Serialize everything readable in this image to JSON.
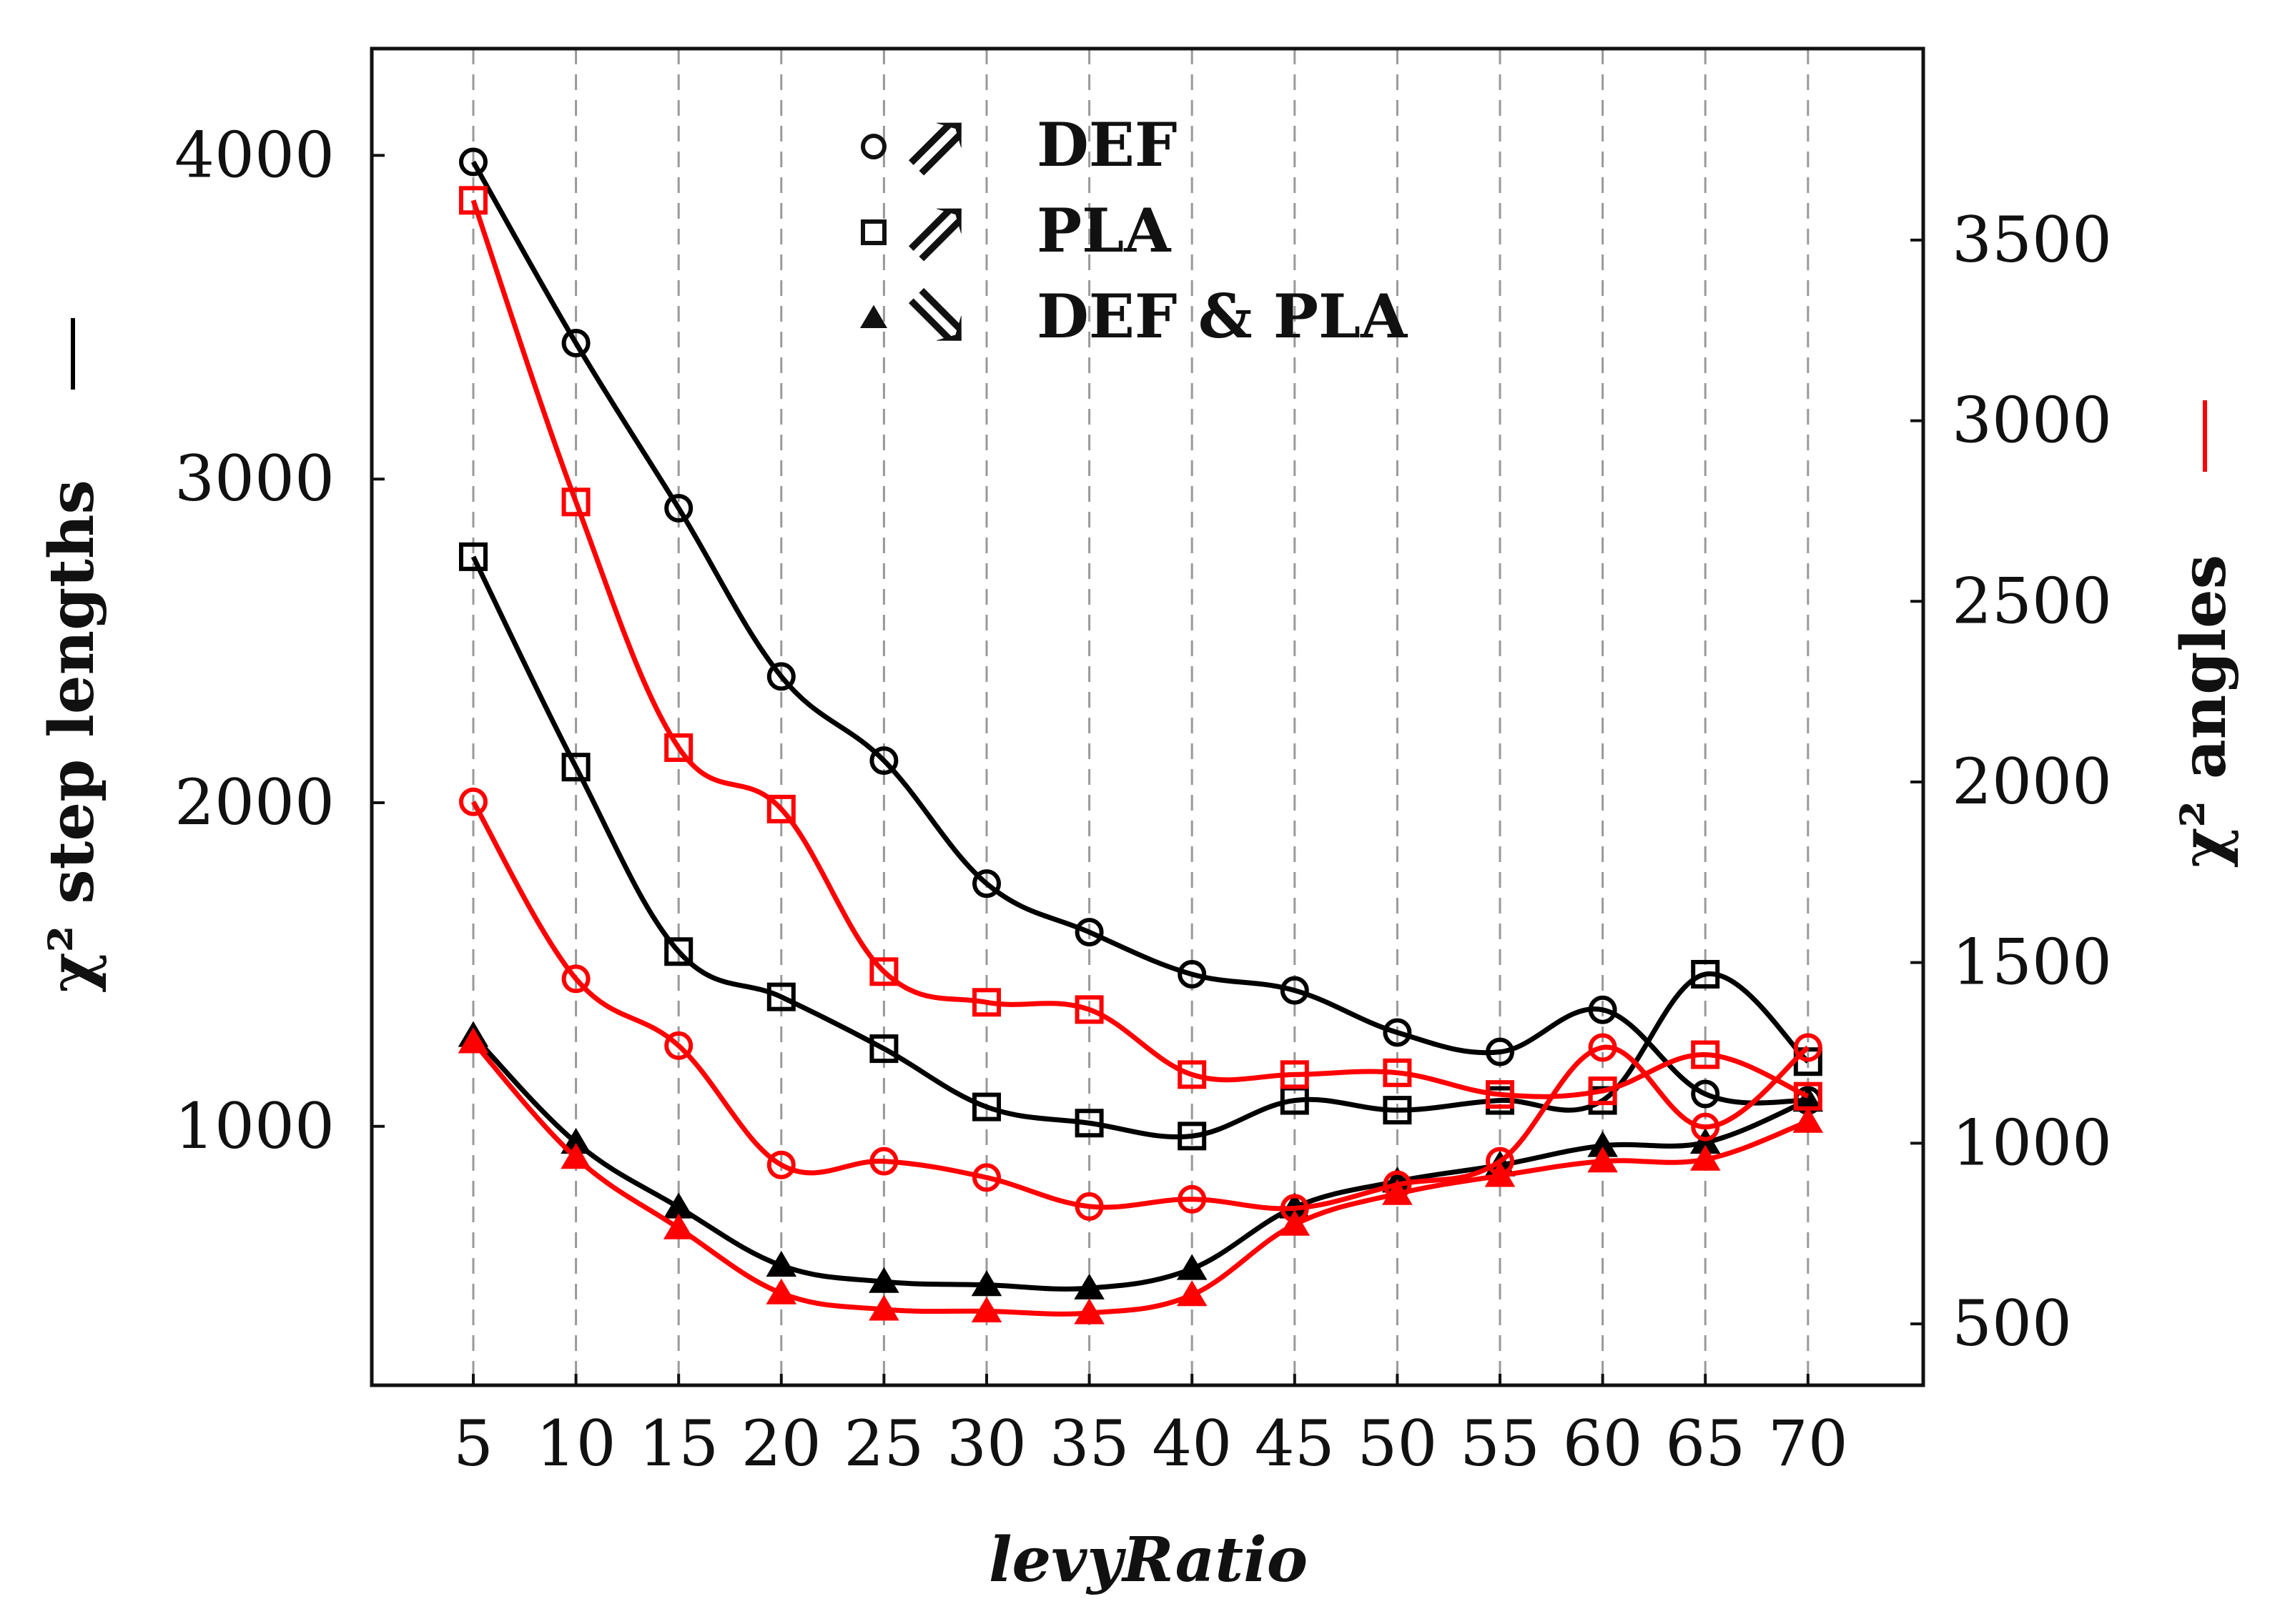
{
  "chart_data": {
    "type": "line",
    "xlabel": "levyRatio",
    "ylabel_left": "χ² step lengths",
    "ylabel_right": "χ² angles",
    "x": [
      5,
      10,
      15,
      20,
      25,
      30,
      35,
      40,
      45,
      50,
      55,
      60,
      65,
      70
    ],
    "ylim_left": [
      200,
      4330
    ],
    "ylim_right": [
      330,
      4030
    ],
    "yticks_left": [
      1000,
      2000,
      3000,
      4000
    ],
    "yticks_right": [
      500,
      1000,
      1500,
      2000,
      2500,
      3000,
      3500
    ],
    "grid": "vertical-dashed",
    "legend_position": "top-center",
    "legend": [
      {
        "marker": "circle",
        "label": "DEF"
      },
      {
        "marker": "square",
        "label": "PLA"
      },
      {
        "marker": "triangle",
        "label": "DEF & PLA"
      }
    ],
    "series": [
      {
        "name": "DEF step lengths",
        "axis": "left",
        "color": "#000000",
        "marker": "circle",
        "values": [
          3980,
          3420,
          2910,
          2390,
          2130,
          1750,
          1600,
          1470,
          1420,
          1290,
          1230,
          1360,
          1100,
          1080
        ]
      },
      {
        "name": "PLA step lengths",
        "axis": "left",
        "color": "#000000",
        "marker": "square",
        "values": [
          2760,
          2110,
          1540,
          1400,
          1240,
          1060,
          1010,
          970,
          1080,
          1050,
          1080,
          1080,
          1470,
          1200
        ]
      },
      {
        "name": "DEF & PLA step lengths",
        "axis": "left",
        "color": "#000000",
        "marker": "triangle",
        "values": [
          1280,
          950,
          750,
          570,
          520,
          510,
          500,
          560,
          750,
          830,
          880,
          940,
          950,
          1080
        ]
      },
      {
        "name": "DEF angles",
        "axis": "right",
        "color": "#ff0000",
        "marker": "circle",
        "values": [
          1945,
          1455,
          1270,
          940,
          950,
          905,
          825,
          845,
          820,
          885,
          950,
          1265,
          1045,
          1265
        ]
      },
      {
        "name": "PLA angles",
        "axis": "right",
        "color": "#ff0000",
        "marker": "square",
        "values": [
          3610,
          2775,
          2095,
          1925,
          1475,
          1390,
          1370,
          1190,
          1190,
          1195,
          1135,
          1145,
          1245,
          1130
        ]
      },
      {
        "name": "DEF & PLA angles",
        "axis": "right",
        "color": "#ff0000",
        "marker": "triangle",
        "values": [
          1280,
          960,
          765,
          585,
          540,
          535,
          530,
          580,
          775,
          860,
          910,
          950,
          955,
          1060
        ]
      }
    ]
  },
  "colors": {
    "left_axis": "#000000",
    "right_axis": "#ff0000",
    "grid": "#999999"
  },
  "legend_symbols": {
    "up_arrows": "⇗",
    "down_arrows": "⇘"
  }
}
